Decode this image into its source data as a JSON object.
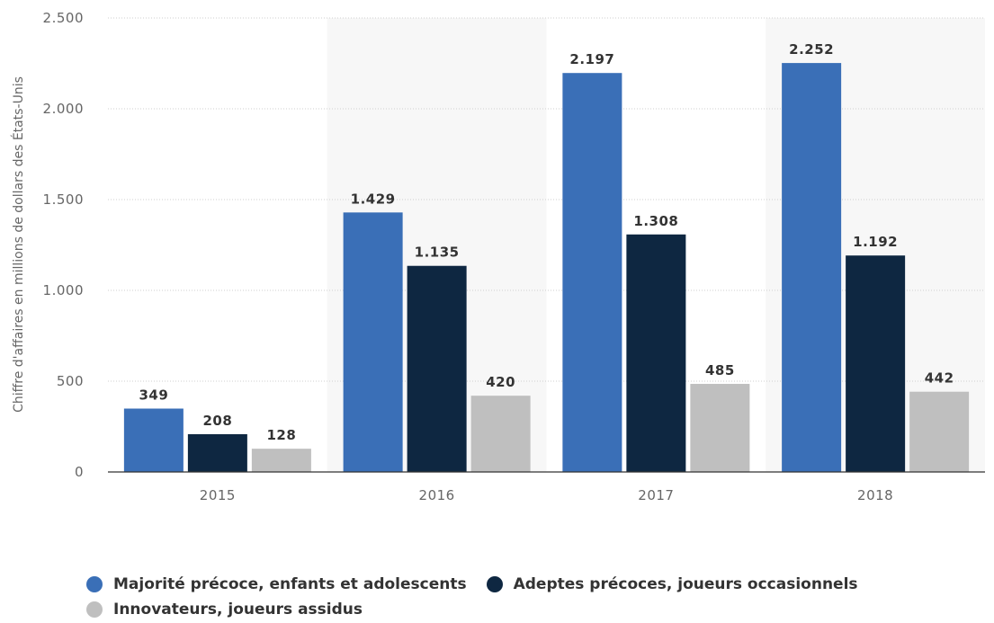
{
  "chart_data": {
    "type": "bar",
    "title": "",
    "xlabel": "",
    "ylabel": "Chiffre d'affaires en millions de dollars des États-Unis",
    "categories": [
      "2015",
      "2016",
      "2017",
      "2018"
    ],
    "ylim": [
      0,
      2500
    ],
    "yticks": [
      0,
      500,
      1000,
      1500,
      2000,
      2500
    ],
    "ytick_labels": [
      "0",
      "500",
      "1.000",
      "1.500",
      "2.000",
      "2.500"
    ],
    "grid": true,
    "legend_position": "bottom",
    "series": [
      {
        "name": "Majorité précoce, enfants et adolescents",
        "color": "#3a6fb7",
        "values": [
          349,
          1429,
          2197,
          2252
        ],
        "labels": [
          "349",
          "1.429",
          "2.197",
          "2.252"
        ]
      },
      {
        "name": "Adeptes précoces, joueurs occasionnels",
        "color": "#0e2741",
        "values": [
          208,
          1135,
          1308,
          1192
        ],
        "labels": [
          "208",
          "1.135",
          "1.308",
          "1.192"
        ]
      },
      {
        "name": "Innovateurs, joueurs assidus",
        "color": "#bfbfbf",
        "values": [
          128,
          420,
          485,
          442
        ],
        "labels": [
          "128",
          "420",
          "485",
          "442"
        ]
      }
    ]
  }
}
